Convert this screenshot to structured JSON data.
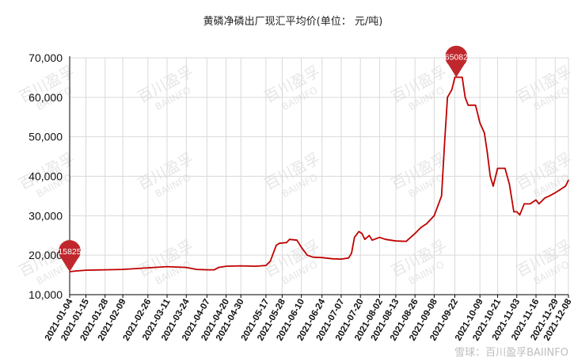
{
  "title": "黄磷净磷出厂现汇平均价(单位： 元/吨)",
  "watermark": {
    "cn": "百川盈孚",
    "en": "BAIINFO"
  },
  "footer_watermark": "雪球：百川盈孚BAIINFO",
  "colors": {
    "line": "#c00000",
    "pin": "#c0272d",
    "grid": "#d9d9d9",
    "axis": "#000000"
  },
  "chart_data": {
    "type": "line",
    "title": "黄磷净磷出厂现汇平均价(单位： 元/吨)",
    "ylim": [
      10000,
      70000
    ],
    "y_ticks": [
      "10,000",
      "20,000",
      "30,000",
      "40,000",
      "50,000",
      "60,000",
      "70,000"
    ],
    "y_tick_values": [
      10000,
      20000,
      30000,
      40000,
      50000,
      60000,
      70000
    ],
    "grid": true,
    "categories": [
      "2021-01-04",
      "2021-01-15",
      "2021-01-28",
      "2021-02-09",
      "2021-02-26",
      "2021-03-11",
      "2021-03-24",
      "2021-04-07",
      "2021-04-20",
      "2021-04-30",
      "2021-05-17",
      "2021-05-28",
      "2021-06-10",
      "2021-06-24",
      "2021-07-07",
      "2021-07-20",
      "2021-08-02",
      "2021-08-13",
      "2021-08-26",
      "2021-09-08",
      "2021-09-22",
      "2021-10-09",
      "2021-10-21",
      "2021-11-03",
      "2021-11-16",
      "2021-11-29",
      "2021-12-08"
    ],
    "series": [
      {
        "values": [
          [
            "2021-01-04",
            15825
          ],
          [
            "2021-01-08",
            16000
          ],
          [
            "2021-01-15",
            16200
          ],
          [
            "2021-01-28",
            16300
          ],
          [
            "2021-02-09",
            16400
          ],
          [
            "2021-02-26",
            16800
          ],
          [
            "2021-03-11",
            17100
          ],
          [
            "2021-03-24",
            16900
          ],
          [
            "2021-03-31",
            16400
          ],
          [
            "2021-04-07",
            16300
          ],
          [
            "2021-04-12",
            16300
          ],
          [
            "2021-04-15",
            16900
          ],
          [
            "2021-04-20",
            17200
          ],
          [
            "2021-04-30",
            17300
          ],
          [
            "2021-05-10",
            17200
          ],
          [
            "2021-05-17",
            17400
          ],
          [
            "2021-05-20",
            18500
          ],
          [
            "2021-05-24",
            22500
          ],
          [
            "2021-05-26",
            23000
          ],
          [
            "2021-05-31",
            23200
          ],
          [
            "2021-06-02",
            24000
          ],
          [
            "2021-06-07",
            23800
          ],
          [
            "2021-06-10",
            22000
          ],
          [
            "2021-06-14",
            20000
          ],
          [
            "2021-06-18",
            19500
          ],
          [
            "2021-06-24",
            19400
          ],
          [
            "2021-07-01",
            19100
          ],
          [
            "2021-07-07",
            19000
          ],
          [
            "2021-07-12",
            19300
          ],
          [
            "2021-07-14",
            20500
          ],
          [
            "2021-07-16",
            24500
          ],
          [
            "2021-07-19",
            26000
          ],
          [
            "2021-07-21",
            25500
          ],
          [
            "2021-07-23",
            24000
          ],
          [
            "2021-07-26",
            25000
          ],
          [
            "2021-07-28",
            23800
          ],
          [
            "2021-08-02",
            24500
          ],
          [
            "2021-08-06",
            24000
          ],
          [
            "2021-08-13",
            23600
          ],
          [
            "2021-08-20",
            23500
          ],
          [
            "2021-08-26",
            25500
          ],
          [
            "2021-08-30",
            27000
          ],
          [
            "2021-09-03",
            28000
          ],
          [
            "2021-09-08",
            30000
          ],
          [
            "2021-09-13",
            35000
          ],
          [
            "2021-09-15",
            48000
          ],
          [
            "2021-09-17",
            60000
          ],
          [
            "2021-09-20",
            62000
          ],
          [
            "2021-09-22",
            65082
          ],
          [
            "2021-09-27",
            65082
          ],
          [
            "2021-09-29",
            60000
          ],
          [
            "2021-10-01",
            58000
          ],
          [
            "2021-10-06",
            58000
          ],
          [
            "2021-10-09",
            53500
          ],
          [
            "2021-10-12",
            51000
          ],
          [
            "2021-10-14",
            46000
          ],
          [
            "2021-10-16",
            40000
          ],
          [
            "2021-10-18",
            37500
          ],
          [
            "2021-10-21",
            42000
          ],
          [
            "2021-10-26",
            42000
          ],
          [
            "2021-10-29",
            38000
          ],
          [
            "2021-11-01",
            31000
          ],
          [
            "2021-11-03",
            31000
          ],
          [
            "2021-11-05",
            30200
          ],
          [
            "2021-11-08",
            33000
          ],
          [
            "2021-11-12",
            33000
          ],
          [
            "2021-11-16",
            34000
          ],
          [
            "2021-11-18",
            33000
          ],
          [
            "2021-11-22",
            34500
          ],
          [
            "2021-11-25",
            35000
          ],
          [
            "2021-11-29",
            35800
          ],
          [
            "2021-12-02",
            36500
          ],
          [
            "2021-12-06",
            37500
          ],
          [
            "2021-12-08",
            39000
          ]
        ]
      }
    ],
    "annotations": [
      {
        "date": "2021-01-04",
        "value": 15825,
        "label": "15825"
      },
      {
        "date": "2021-09-23",
        "value": 65082,
        "label": "65082"
      }
    ]
  }
}
